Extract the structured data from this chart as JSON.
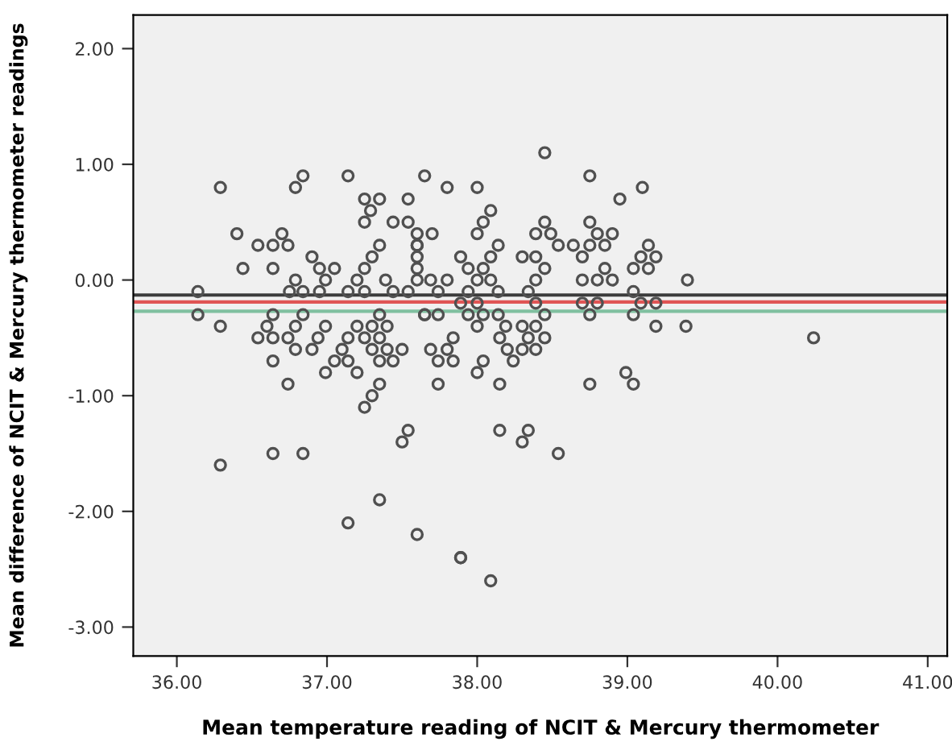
{
  "chart_data": {
    "type": "scatter",
    "xlabel": "Mean temperature reading of NCIT & Mercury thermometer",
    "ylabel": "Mean difference of NCIT & Mercury thermometer readings",
    "xlim": [
      35.71,
      41.13
    ],
    "ylim": [
      -3.25,
      2.29
    ],
    "xticks": [
      {
        "value": 36,
        "label": "36.00"
      },
      {
        "value": 37,
        "label": "37.00"
      },
      {
        "value": 38,
        "label": "38.00"
      },
      {
        "value": 39,
        "label": "39.00"
      },
      {
        "value": 40,
        "label": "40.00"
      },
      {
        "value": 41,
        "label": "41.00"
      }
    ],
    "yticks": [
      {
        "value": -3,
        "label": "-3.00"
      },
      {
        "value": -2,
        "label": "-2.00"
      },
      {
        "value": -1,
        "label": "-1.00"
      },
      {
        "value": 0,
        "label": "0.00"
      },
      {
        "value": 1,
        "label": "1.00"
      },
      {
        "value": 2,
        "label": "2.00"
      }
    ],
    "grid": false,
    "marker": "circle",
    "ref_lines": [
      {
        "axis": "y",
        "value": -0.13,
        "color": "#3c3c3c"
      },
      {
        "axis": "y",
        "value": -0.19,
        "color": "#e05555"
      },
      {
        "axis": "y",
        "value": -0.27,
        "color": "#80c0a0"
      }
    ],
    "series": [
      {
        "color": "#505050",
        "x": [
          36.29,
          36.84,
          36.79,
          37.14,
          37.65,
          37.25,
          37.35,
          37.29,
          37.54,
          37.25,
          37.44,
          37.54,
          36.4,
          36.7,
          36.54,
          36.64,
          36.74,
          36.9,
          36.95,
          37.05,
          36.44,
          36.64,
          37.35,
          37.3,
          37.25,
          37.2,
          37.39,
          36.79,
          36.99,
          36.75,
          36.84,
          36.95,
          37.14,
          37.25,
          36.14,
          37.44,
          37.54,
          37.6,
          37.6,
          37.6,
          37.6,
          37.6,
          37.6,
          36.14,
          36.64,
          36.84,
          37.35,
          37.65,
          36.29,
          36.6,
          36.79,
          36.99,
          37.2,
          37.3,
          37.4,
          36.54,
          36.64,
          36.74,
          36.94,
          37.14,
          37.25,
          37.35,
          36.79,
          36.9,
          37.1,
          37.3,
          37.4,
          37.5,
          36.64,
          37.05,
          37.14,
          37.35,
          37.44,
          36.99,
          37.2,
          36.74,
          37.35,
          37.3,
          37.25,
          37.54,
          37.5,
          36.64,
          36.84,
          36.29,
          37.35,
          37.14,
          37.6,
          38.0,
          38.19,
          38.3,
          38.39,
          39.19,
          39.39,
          37.84,
          38.15,
          38.34,
          38.45,
          40.24,
          37.69,
          37.8,
          38.2,
          38.3,
          38.39,
          37.74,
          37.84,
          38.04,
          38.24,
          38.0,
          38.99,
          37.74,
          38.15,
          38.75,
          39.04,
          38.15,
          38.34,
          38.3,
          38.54,
          37.89,
          37.89,
          38.09,
          38.45,
          38.75,
          37.8,
          38.0,
          39.1,
          38.95,
          38.09,
          38.04,
          38.45,
          38.75,
          38.0,
          38.39,
          38.49,
          38.8,
          38.9,
          37.7,
          38.14,
          38.54,
          38.64,
          38.75,
          38.85,
          39.14,
          37.89,
          38.09,
          38.3,
          38.39,
          38.7,
          39.09,
          39.19,
          37.94,
          38.04,
          38.45,
          38.85,
          39.04,
          39.14,
          37.69,
          37.8,
          38.0,
          38.09,
          38.39,
          38.7,
          38.8,
          38.9,
          39.4,
          37.74,
          37.94,
          38.14,
          38.34,
          39.04,
          37.89,
          38.0,
          38.39,
          38.7,
          38.8,
          39.09,
          39.19,
          37.65,
          37.74,
          37.94,
          38.04,
          38.14,
          38.45,
          38.75,
          39.04
        ],
        "values": [
          0.8,
          0.9,
          0.8,
          0.9,
          0.9,
          0.7,
          0.7,
          0.6,
          0.7,
          0.5,
          0.5,
          0.5,
          0.4,
          0.4,
          0.3,
          0.3,
          0.3,
          0.2,
          0.1,
          0.1,
          0.1,
          0.1,
          0.3,
          0.2,
          0.1,
          0.0,
          0.0,
          0.0,
          0.0,
          -0.1,
          -0.1,
          -0.1,
          -0.1,
          -0.1,
          -0.1,
          -0.1,
          -0.1,
          0.4,
          0.3,
          0.3,
          0.2,
          0.1,
          0.0,
          -0.3,
          -0.3,
          -0.3,
          -0.3,
          -0.3,
          -0.4,
          -0.4,
          -0.4,
          -0.4,
          -0.4,
          -0.4,
          -0.4,
          -0.5,
          -0.5,
          -0.5,
          -0.5,
          -0.5,
          -0.5,
          -0.5,
          -0.6,
          -0.6,
          -0.6,
          -0.6,
          -0.6,
          -0.6,
          -0.7,
          -0.7,
          -0.7,
          -0.7,
          -0.7,
          -0.8,
          -0.8,
          -0.9,
          -0.9,
          -1.0,
          -1.1,
          -1.3,
          -1.4,
          -1.5,
          -1.5,
          -1.6,
          -1.9,
          -2.1,
          -2.2,
          -0.4,
          -0.4,
          -0.4,
          -0.4,
          -0.4,
          -0.4,
          -0.5,
          -0.5,
          -0.5,
          -0.5,
          -0.5,
          -0.6,
          -0.6,
          -0.6,
          -0.6,
          -0.6,
          -0.7,
          -0.7,
          -0.7,
          -0.7,
          -0.8,
          -0.8,
          -0.9,
          -0.9,
          -0.9,
          -0.9,
          -1.3,
          -1.3,
          -1.4,
          -1.5,
          -2.4,
          -2.4,
          -2.6,
          1.1,
          0.9,
          0.8,
          0.8,
          0.8,
          0.7,
          0.6,
          0.5,
          0.5,
          0.5,
          0.4,
          0.4,
          0.4,
          0.4,
          0.4,
          0.4,
          0.3,
          0.3,
          0.3,
          0.3,
          0.3,
          0.3,
          0.2,
          0.2,
          0.2,
          0.2,
          0.2,
          0.2,
          0.2,
          0.1,
          0.1,
          0.1,
          0.1,
          0.1,
          0.1,
          0.0,
          0.0,
          0.0,
          0.0,
          0.0,
          0.0,
          0.0,
          0.0,
          0.0,
          -0.1,
          -0.1,
          -0.1,
          -0.1,
          -0.1,
          -0.2,
          -0.2,
          -0.2,
          -0.2,
          -0.2,
          -0.2,
          -0.2,
          -0.3,
          -0.3,
          -0.3,
          -0.3,
          -0.3,
          -0.3,
          -0.3,
          -0.3
        ]
      }
    ]
  }
}
